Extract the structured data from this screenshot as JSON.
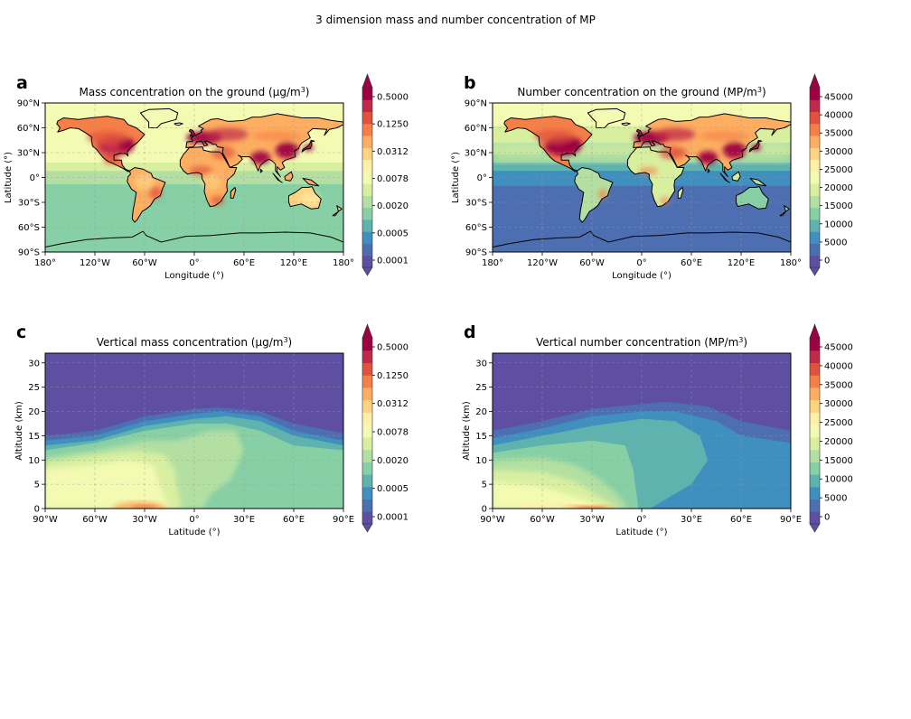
{
  "figure": {
    "title": "3 dimension mass and number concentration of MP"
  },
  "palette": [
    "#5e4fa2",
    "#4d6fb1",
    "#3f8fbf",
    "#5fb3ae",
    "#87cfa4",
    "#b3e0a2",
    "#d9efa0",
    "#f3fab2",
    "#fff0a8",
    "#fed482",
    "#fdae61",
    "#f57f48",
    "#e1523d",
    "#c1294a",
    "#9e0142"
  ],
  "chart_data": [
    {
      "panel": "a",
      "type": "heatmap",
      "title": "Mass concentration on the ground (μg/m³)",
      "xlabel": "Longitude (°)",
      "ylabel": "Latitude (°)",
      "xlim": [
        -180,
        180
      ],
      "ylim": [
        -90,
        90
      ],
      "xticks": [
        "180°",
        "120°W",
        "60°W",
        "0°",
        "60°E",
        "120°E",
        "180°"
      ],
      "yticks": [
        "90°N",
        "60°N",
        "30°N",
        "0°",
        "30°S",
        "60°S",
        "90°S"
      ],
      "grid": true,
      "colorbar": {
        "scale": "log",
        "ticks": [
          "0.5000",
          "0.1250",
          "0.0312",
          "0.0078",
          "0.0020",
          "0.0005",
          "0.0001"
        ],
        "extend": "both"
      }
    },
    {
      "panel": "b",
      "type": "heatmap",
      "title": "Number concentration on the ground (MP/m³)",
      "xlabel": "Longitude (°)",
      "ylabel": "Latitude (°)",
      "xlim": [
        -180,
        180
      ],
      "ylim": [
        -90,
        90
      ],
      "xticks": [
        "180°",
        "120°W",
        "60°W",
        "0°",
        "60°E",
        "120°E",
        "180°"
      ],
      "yticks": [
        "90°N",
        "60°N",
        "30°N",
        "0°",
        "30°S",
        "60°S",
        "90°S"
      ],
      "grid": true,
      "colorbar": {
        "scale": "linear",
        "ticks": [
          "45000",
          "40000",
          "35000",
          "30000",
          "25000",
          "20000",
          "15000",
          "10000",
          "5000",
          "0"
        ],
        "extend": "both"
      }
    },
    {
      "panel": "c",
      "type": "heatmap",
      "title": "Vertical mass concentration (μg/m³)",
      "xlabel": "Latitude (°)",
      "ylabel": "Altitude (km)",
      "xlim": [
        -90,
        90
      ],
      "ylim": [
        0,
        32
      ],
      "xticks": [
        "90°W",
        "60°W",
        "30°W",
        "0°",
        "30°E",
        "60°E",
        "90°E"
      ],
      "yticks": [
        "30",
        "25",
        "20",
        "15",
        "10",
        "5",
        "0"
      ],
      "grid": true,
      "colorbar": {
        "scale": "log",
        "ticks": [
          "0.5000",
          "0.1250",
          "0.0312",
          "0.0078",
          "0.0020",
          "0.0005",
          "0.0001"
        ],
        "extend": "both"
      }
    },
    {
      "panel": "d",
      "type": "heatmap",
      "title": "Vertical number concentration (MP/m³)",
      "xlabel": "Latitude (°)",
      "ylabel": "Altitude (km)",
      "xlim": [
        -90,
        90
      ],
      "ylim": [
        0,
        32
      ],
      "xticks": [
        "90°W",
        "60°W",
        "30°W",
        "0°",
        "30°E",
        "60°E",
        "90°E"
      ],
      "yticks": [
        "30",
        "25",
        "20",
        "15",
        "10",
        "5",
        "0"
      ],
      "grid": true,
      "colorbar": {
        "scale": "linear",
        "ticks": [
          "45000",
          "40000",
          "35000",
          "30000",
          "25000",
          "20000",
          "15000",
          "10000",
          "5000",
          "0"
        ],
        "extend": "both"
      }
    }
  ]
}
